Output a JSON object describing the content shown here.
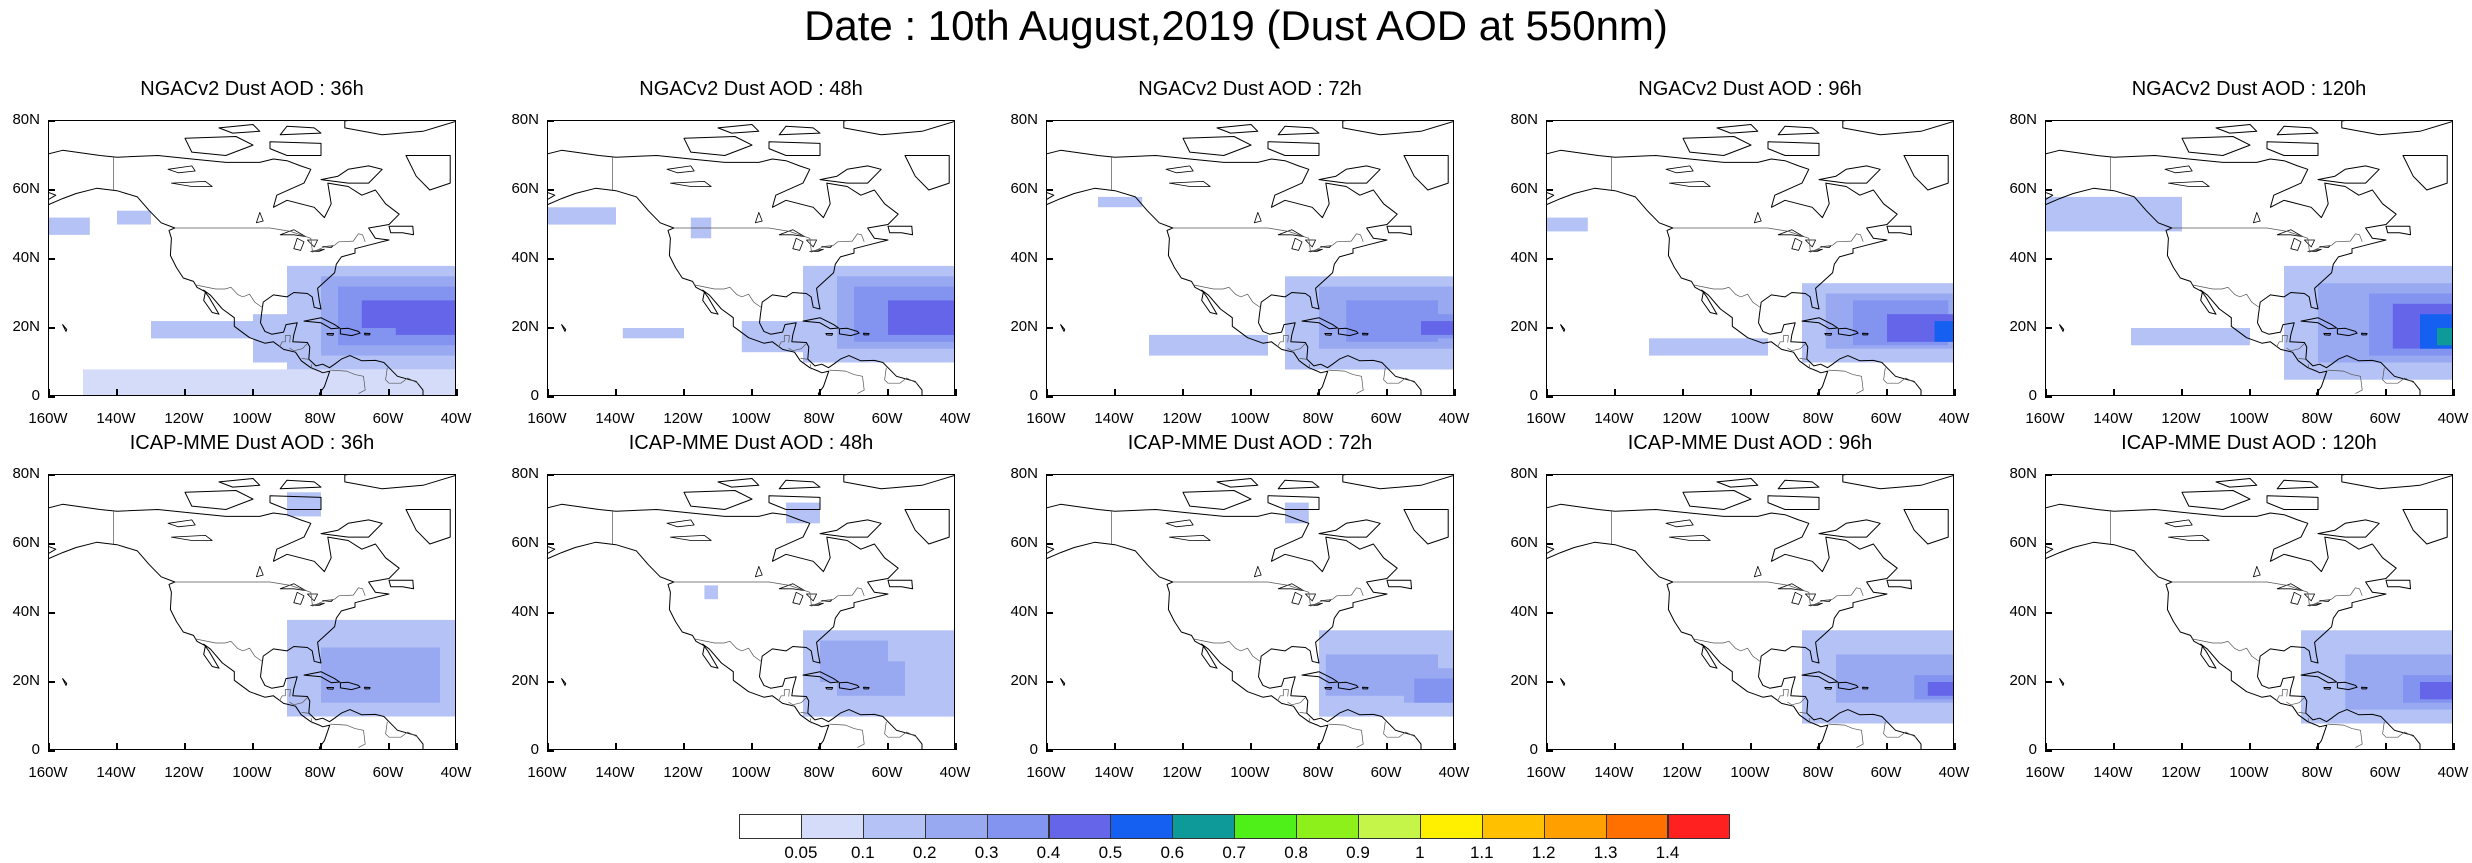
{
  "title": "Date : 10th August,2019 (Dust AOD at 550nm)",
  "axes": {
    "lat_labels": [
      "80N",
      "60N",
      "40N",
      "20N",
      "0"
    ],
    "lon_labels": [
      "160W",
      "140W",
      "120W",
      "100W",
      "80W",
      "60W",
      "40W"
    ]
  },
  "panels": [
    {
      "title": "NGACv2 Dust AOD : 36h"
    },
    {
      "title": "NGACv2 Dust AOD : 48h"
    },
    {
      "title": "NGACv2 Dust AOD : 72h"
    },
    {
      "title": "NGACv2 Dust AOD : 96h"
    },
    {
      "title": "NGACv2 Dust AOD : 120h"
    },
    {
      "title": "ICAP-MME Dust AOD : 36h"
    },
    {
      "title": "ICAP-MME Dust AOD : 48h"
    },
    {
      "title": "ICAP-MME Dust AOD : 72h"
    },
    {
      "title": "ICAP-MME Dust AOD : 96h"
    },
    {
      "title": "ICAP-MME Dust AOD : 120h"
    }
  ],
  "colorbar": {
    "labels": [
      "0.05",
      "0.1",
      "0.2",
      "0.3",
      "0.4",
      "0.5",
      "0.6",
      "0.7",
      "0.8",
      "0.9",
      "1",
      "1.1",
      "1.2",
      "1.3",
      "1.4"
    ],
    "colors": [
      "#ffffff",
      "#d4dcfa",
      "#b4c2f5",
      "#98a9f2",
      "#8294f0",
      "#6565ea",
      "#1560f0",
      "#0f9a9a",
      "#4ff01a",
      "#8ef01a",
      "#c6f54a",
      "#fff000",
      "#ffc000",
      "#ffa000",
      "#ff7000",
      "#ff2020"
    ]
  }
}
